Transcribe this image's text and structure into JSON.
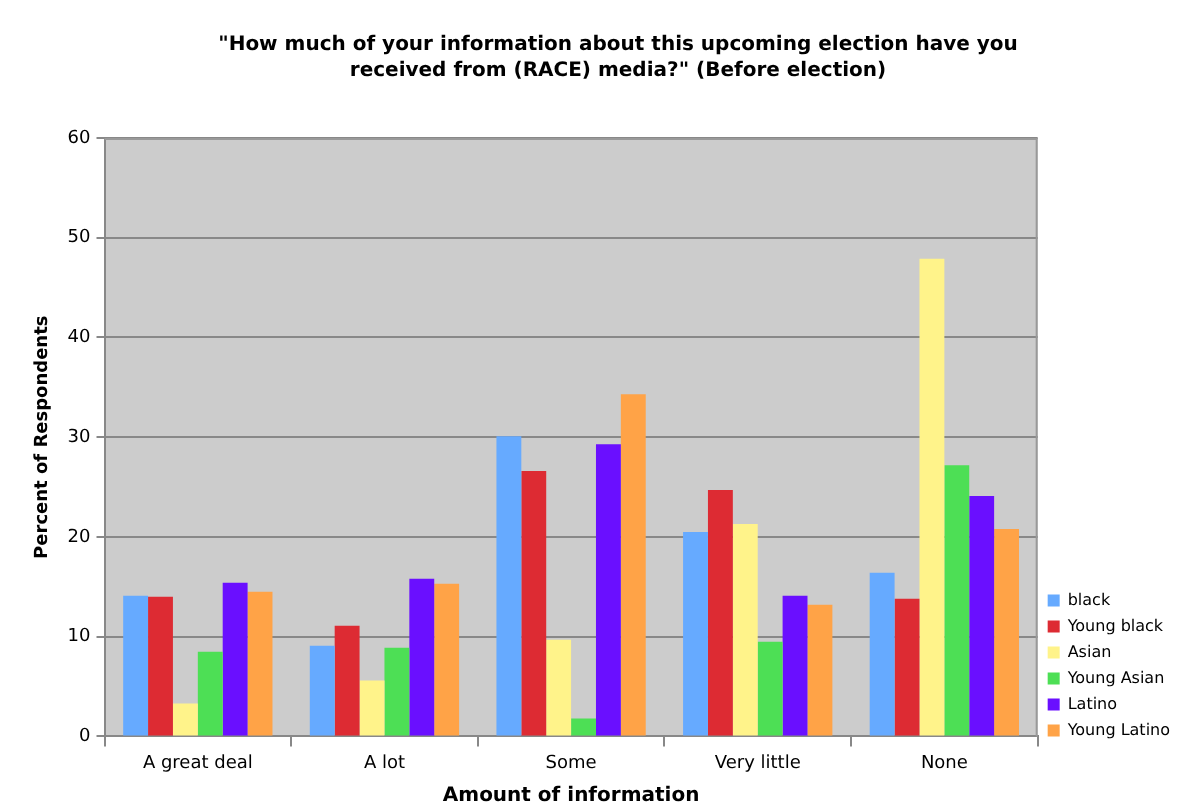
{
  "chart_data": {
    "type": "bar",
    "title": "\"How much of your information about this upcoming election have you received from (RACE) media?\" (Before election)",
    "xlabel": "Amount of information",
    "ylabel": "Percent of Respondents",
    "categories": [
      "A great deal",
      "A lot",
      "Some",
      "Very little",
      "None"
    ],
    "series": [
      {
        "name": "black",
        "color": "#66aaff",
        "values": [
          14.1,
          9.1,
          30.1,
          20.5,
          16.4
        ]
      },
      {
        "name": "Young black",
        "color": "#dd2b33",
        "values": [
          14.0,
          11.1,
          26.6,
          24.7,
          13.8
        ]
      },
      {
        "name": "Asian",
        "color": "#fff38a",
        "values": [
          3.3,
          5.6,
          9.7,
          21.3,
          47.9
        ]
      },
      {
        "name": "Young Asian",
        "color": "#4ddf55",
        "values": [
          8.5,
          8.9,
          1.8,
          9.5,
          27.2
        ]
      },
      {
        "name": "Latino",
        "color": "#6a0fff",
        "values": [
          15.4,
          15.8,
          29.3,
          14.1,
          24.1
        ]
      },
      {
        "name": "Young Latino",
        "color": "#ffa347",
        "values": [
          14.5,
          15.3,
          34.3,
          13.2,
          20.8
        ]
      }
    ],
    "ylim": [
      0,
      60
    ],
    "yticks": [
      0,
      10,
      20,
      30,
      40,
      50,
      60
    ],
    "grid": "y",
    "legend": "bottom right"
  }
}
